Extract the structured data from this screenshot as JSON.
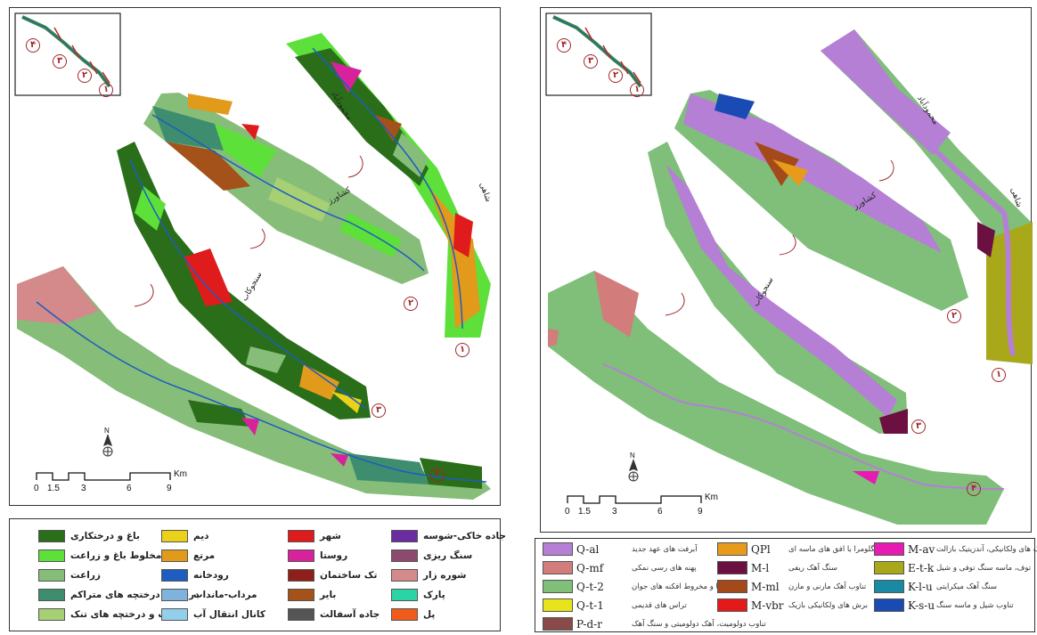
{
  "left_map": {
    "inset_labels": [
      "۴",
      "۳",
      "۲",
      "۱"
    ],
    "section_labels": [
      "۱",
      "۲",
      "۳",
      "۴"
    ],
    "river_labels": [
      "محمودآباد",
      "کشاورز",
      "سنجوکاب",
      "شاهی"
    ],
    "north_label": "N",
    "scale": {
      "ticks": [
        "0",
        "1.5",
        "3",
        "6",
        "9"
      ],
      "unit": "Km"
    },
    "legend": [
      {
        "label": "باغ و درختکاری",
        "color": "#2a6e1a"
      },
      {
        "label": "مخلوط باغ و زراعت",
        "color": "#5de03a"
      },
      {
        "label": "زراعت",
        "color": "#86bd79"
      },
      {
        "label": "درخت و درختچه های متراکم",
        "color": "#3e8d6e"
      },
      {
        "label": "درخت و درختچه های تنک",
        "color": "#a7cf74"
      },
      {
        "label": "دیم",
        "color": "#ead11a"
      },
      {
        "label": "مرتع",
        "color": "#e29a1b"
      },
      {
        "label": "رودخانه",
        "color": "#1e5cc2"
      },
      {
        "label": "مرداب-مانداب",
        "color": "#7fb3de"
      },
      {
        "label": "کانال انتقال آب",
        "color": "#93cfea"
      },
      {
        "label": "شهر",
        "color": "#e01b1b"
      },
      {
        "label": "روستا",
        "color": "#d8229c"
      },
      {
        "label": "تک ساختمان",
        "color": "#8e1f1a"
      },
      {
        "label": "بایر",
        "color": "#a4521a"
      },
      {
        "label": "جاده آسفالت",
        "color": "#555555"
      },
      {
        "label": "جاده خاکی-شوسه",
        "color": "#6b2ca0"
      },
      {
        "label": "سنگ ریزی",
        "color": "#8c4a6e"
      },
      {
        "label": "شوره زار",
        "color": "#d48a8a"
      },
      {
        "label": "پارک",
        "color": "#2ad4a4"
      },
      {
        "label": "پل",
        "color": "#f05a1a"
      }
    ]
  },
  "right_map": {
    "inset_labels": [
      "۴",
      "۳",
      "۲",
      "۱"
    ],
    "section_labels": [
      "۱",
      "۲",
      "۳",
      "۴"
    ],
    "river_labels": [
      "محمودآباد",
      "کشاورز",
      "سنجوکاب",
      "شاهی"
    ],
    "north_label": "N",
    "scale": {
      "ticks": [
        "0",
        "1.5",
        "3",
        "6",
        "9"
      ],
      "unit": "Km"
    },
    "legend": [
      {
        "code": "Q-al",
        "desc": "آبرفت های عهد جدید",
        "color": "#b57fd6"
      },
      {
        "code": "Q-mf",
        "desc": "پهنه های رسی نمکی",
        "color": "#d27c7c"
      },
      {
        "code": "Q-t-2",
        "desc": "تراس ها و مخروط افکنه های جوان",
        "color": "#7fbf7a"
      },
      {
        "code": "Q-t-1",
        "desc": "تراس های قدیمی",
        "color": "#e8e41c"
      },
      {
        "code": "P-d-r",
        "desc": "تناوب دولومیت، آهک دولومیتی و سنگ آهک",
        "color": "#8a4a4a"
      },
      {
        "code": "QPl",
        "desc": "کنگلومرا با افق های ماسه ای",
        "color": "#e89a1a"
      },
      {
        "code": "M-l",
        "desc": "سنگ آهک ریفی",
        "color": "#6b1040"
      },
      {
        "code": "M-ml",
        "desc": "تناوب آهک مارنی و مارن",
        "color": "#a44a1a"
      },
      {
        "code": "M-vbr",
        "desc": "برش های ولکانیکی بازیک",
        "color": "#e41a1a"
      },
      {
        "code": "M-av",
        "desc": "سنگ های ولکانیکی، آندزیتیک بازالت",
        "color": "#e81ab4"
      },
      {
        "code": "E-t-k",
        "desc": "توف، ماسه سنگ توفی و شیل",
        "color": "#a8a81a"
      },
      {
        "code": "K-l-u",
        "desc": "سنگ آهک میکرایتی",
        "color": "#1a8aa4"
      },
      {
        "code": "K-s-u",
        "desc": "تناوب شیل و ماسه سنگ",
        "color": "#1a4ab4"
      }
    ]
  }
}
